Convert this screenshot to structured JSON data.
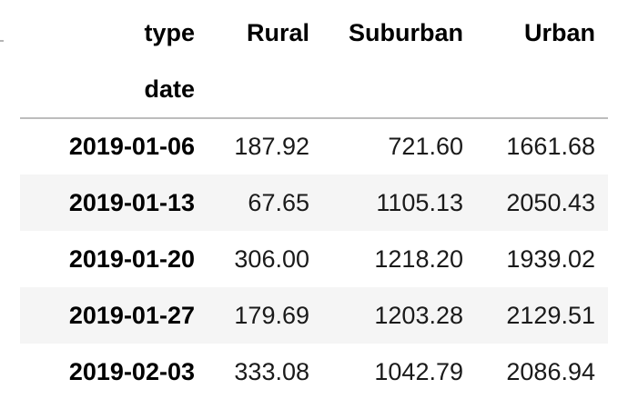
{
  "table": {
    "columns_header_label": "type",
    "index_header_label": "date",
    "columns": [
      "Rural",
      "Suburban",
      "Urban"
    ],
    "rows": [
      {
        "date": "2019-01-06",
        "values": [
          "187.92",
          "721.60",
          "1661.68"
        ]
      },
      {
        "date": "2019-01-13",
        "values": [
          "67.65",
          "1105.13",
          "2050.43"
        ]
      },
      {
        "date": "2019-01-20",
        "values": [
          "306.00",
          "1218.20",
          "1939.02"
        ]
      },
      {
        "date": "2019-01-27",
        "values": [
          "179.69",
          "1203.28",
          "2129.51"
        ]
      },
      {
        "date": "2019-02-03",
        "values": [
          "333.08",
          "1042.79",
          "2086.94"
        ]
      }
    ]
  }
}
